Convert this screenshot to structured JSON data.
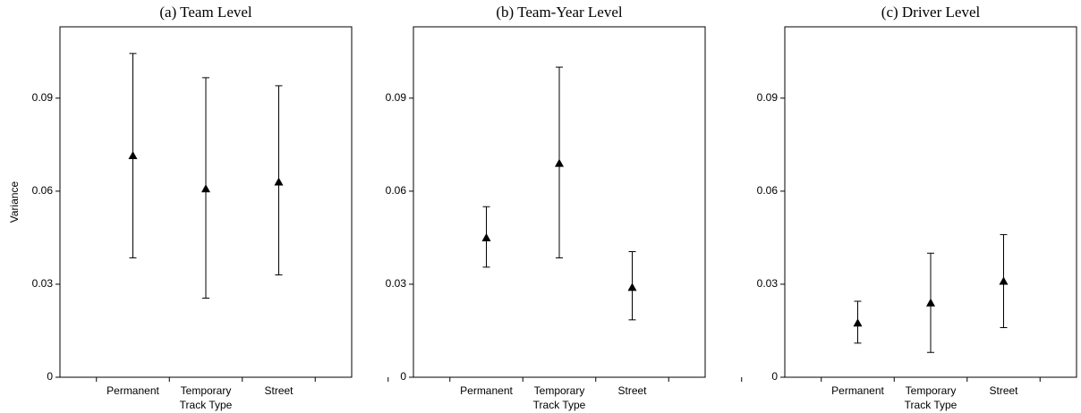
{
  "chart_data": [
    {
      "type": "errorbar",
      "title": "(a) Team Level",
      "ylabel": "Variance",
      "xlabel": "Track Type",
      "categories": [
        "Permanent",
        "Temporary",
        "Street"
      ],
      "values": [
        0.0715,
        0.0608,
        0.063
      ],
      "lower": [
        0.0385,
        0.0255,
        0.033
      ],
      "upper": [
        0.1044,
        0.0966,
        0.094
      ],
      "ylim": [
        0,
        0.113
      ],
      "yticks": [
        0,
        0.03,
        0.06,
        0.09
      ],
      "color": "#000000"
    },
    {
      "type": "errorbar",
      "title": "(b) Team-Year Level",
      "xlabel": "Track Type",
      "categories": [
        "Permanent",
        "Temporary",
        "Street"
      ],
      "values": [
        0.045,
        0.069,
        0.029
      ],
      "lower": [
        0.0355,
        0.0385,
        0.0185
      ],
      "upper": [
        0.055,
        0.1,
        0.0405
      ],
      "ylim": [
        0,
        0.113
      ],
      "yticks": [
        0,
        0.03,
        0.06,
        0.09
      ],
      "color": "#000000"
    },
    {
      "type": "errorbar",
      "title": "(c) Driver Level",
      "xlabel": "Track Type",
      "categories": [
        "Permanent",
        "Temporary",
        "Street"
      ],
      "values": [
        0.0175,
        0.024,
        0.031
      ],
      "lower": [
        0.011,
        0.008,
        0.016
      ],
      "upper": [
        0.0245,
        0.04,
        0.046
      ],
      "ylim": [
        0,
        0.113
      ],
      "yticks": [
        0,
        0.03,
        0.06,
        0.09
      ],
      "color": "#000000"
    }
  ]
}
